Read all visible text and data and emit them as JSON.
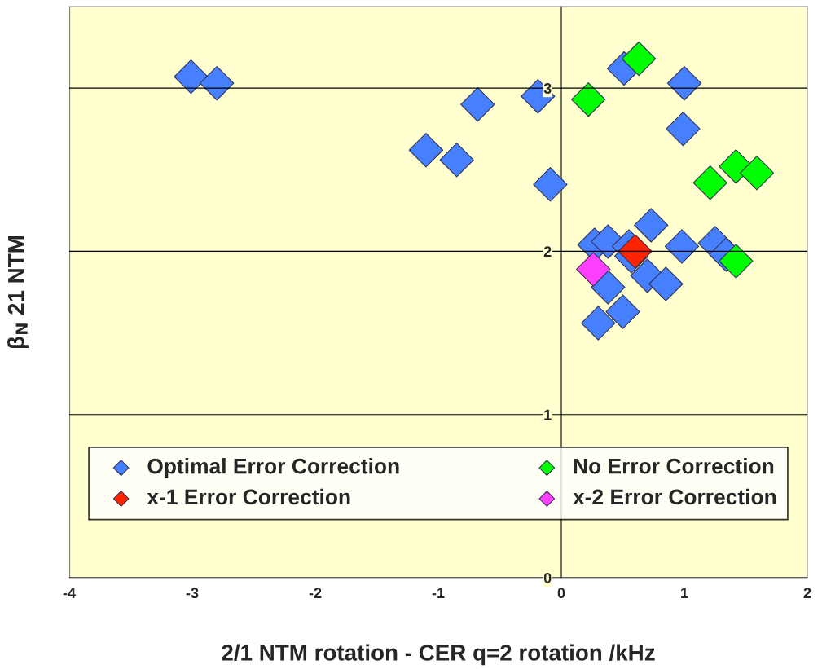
{
  "chart_data": {
    "type": "scatter",
    "xlabel": "2/1 NTM rotation - CER q=2 rotation /kHz",
    "ylabel": "β$_{N}$ 21 NTM",
    "xlim": [
      -4,
      2
    ],
    "xticks": [
      -4,
      -3,
      -2,
      -1,
      0,
      1,
      2
    ],
    "ylim": [
      0,
      3.5
    ],
    "yticks": [
      0,
      1,
      2,
      3
    ],
    "grid": "y",
    "legend": "bottom",
    "marker": "diamond",
    "series": [
      {
        "name": "Optimal Error Correction",
        "color": "#4680ff",
        "x": [
          -3.01,
          -2.8,
          -1.1,
          -0.85,
          -0.68,
          -0.19,
          -0.09,
          0.51,
          1.0,
          0.99,
          0.73,
          0.27,
          0.38,
          0.55,
          0.57,
          0.98,
          1.25,
          1.34,
          0.38,
          0.7,
          0.85,
          0.3,
          0.5
        ],
        "values": [
          3.07,
          3.03,
          2.62,
          2.56,
          2.9,
          2.95,
          2.41,
          3.12,
          3.03,
          2.75,
          2.16,
          2.04,
          2.06,
          2.03,
          1.97,
          2.03,
          2.05,
          1.98,
          1.78,
          1.85,
          1.8,
          1.56,
          1.63
        ]
      },
      {
        "name": "No Error Correction",
        "color": "#00ff00",
        "x": [
          0.63,
          0.22,
          1.21,
          1.42,
          1.59,
          1.42
        ],
        "values": [
          3.18,
          2.93,
          2.42,
          2.52,
          2.48,
          1.94
        ]
      },
      {
        "name": "x-1 Error Correction",
        "color": "#ff2400",
        "x": [
          0.6
        ],
        "values": [
          2.0
        ]
      },
      {
        "name": "x-2 Error Correction",
        "color": "#ff40ff",
        "x": [
          0.26
        ],
        "values": [
          1.89
        ]
      }
    ]
  }
}
